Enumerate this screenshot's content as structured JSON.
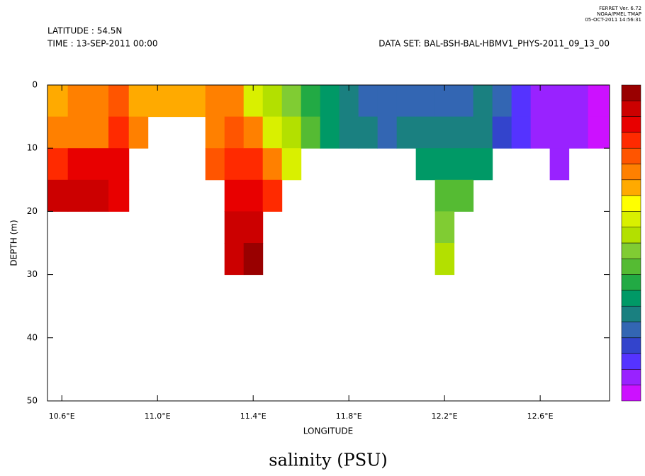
{
  "chart_data": {
    "type": "contour",
    "title": "salinity (PSU)",
    "header_left": [
      "LATITUDE : 54.5N",
      "TIME : 13-SEP-2011 00:00"
    ],
    "header_right": "DATA SET: BAL-BSH-BAL-HBMV1_PHYS-2011_09_13_00",
    "stamp": [
      "FERRET Ver. 6.72",
      "NOAA/PMEL TMAP",
      "05-OCT-2011 14:56:31"
    ],
    "x_label": "LONGITUDE",
    "y_label": "DEPTH (m)",
    "xlim": [
      10.54,
      12.89
    ],
    "ylim": [
      0,
      50
    ],
    "xticks": [
      {
        "value": 10.6,
        "label": "10.6°E"
      },
      {
        "value": 11.0,
        "label": "11.0°E"
      },
      {
        "value": 11.4,
        "label": "11.4°E"
      },
      {
        "value": 11.8,
        "label": "11.8°E"
      },
      {
        "value": 12.2,
        "label": "12.2°E"
      },
      {
        "value": 12.6,
        "label": "12.6°E"
      }
    ],
    "yticks": [
      0,
      10,
      20,
      30,
      40,
      50
    ],
    "y": [
      2.5,
      7.5,
      12.5,
      17.5,
      22.5,
      27.5
    ],
    "x": [
      10.58,
      10.67,
      10.75,
      10.84,
      10.92,
      11.0,
      11.08,
      11.16,
      11.24,
      11.32,
      11.4,
      11.48,
      11.56,
      11.64,
      11.72,
      11.8,
      11.88,
      11.96,
      12.04,
      12.12,
      12.2,
      12.28,
      12.36,
      12.44,
      12.52,
      12.6,
      12.68,
      12.76,
      12.84
    ],
    "values": [
      [
        13.75,
        14.25,
        15.25,
        16.25
      ],
      [
        14.25,
        14.25,
        15.75,
        16.25
      ],
      [
        14.25,
        14.25,
        15.75,
        16.25
      ],
      [
        14.75,
        15.25,
        15.75,
        15.75
      ],
      [
        13.75,
        14.25
      ],
      [
        13.75
      ],
      [
        13.75
      ],
      [
        13.75
      ],
      [
        14.25,
        14.25,
        14.75
      ],
      [
        14.25,
        14.75,
        15.25,
        15.75,
        16.25,
        16.25
      ],
      [
        12.75,
        14.25,
        15.25,
        15.75,
        16.25,
        16.75
      ],
      [
        12.25,
        12.75,
        14.25,
        15.25
      ],
      [
        11.75,
        12.25,
        12.75
      ],
      [
        10.75,
        11.25
      ],
      [
        10.25,
        10.25
      ],
      [
        9.75,
        9.75
      ],
      [
        9.25,
        9.75
      ],
      [
        9.25,
        9.25
      ],
      [
        9.25,
        9.75
      ],
      [
        9.25,
        9.75,
        10.25
      ],
      [
        9.25,
        9.75,
        10.25,
        11.25,
        11.75,
        12.25
      ],
      [
        9.25,
        9.75,
        10.25,
        11.25
      ],
      [
        9.75,
        9.75,
        10.25
      ],
      [
        9.25,
        8.75
      ],
      [
        8.25,
        8.25
      ],
      [
        7.75,
        7.75
      ],
      [
        7.75,
        7.75,
        7.75
      ],
      [
        7.75,
        7.75
      ],
      [
        7.25,
        7.25
      ]
    ],
    "levels": [
      7,
      7.5,
      8,
      8.5,
      9,
      9.5,
      10,
      10.5,
      11,
      11.5,
      12,
      12.5,
      13,
      13.5,
      14,
      14.5,
      15,
      15.5,
      16,
      16.5,
      17
    ],
    "colors": [
      "#cc11ff",
      "#9922ff",
      "#5533ff",
      "#3344cc",
      "#3366b3",
      "#1a8080",
      "#009966",
      "#22aa44",
      "#55bb33",
      "#80cc33",
      "#b3e000",
      "#d9f000",
      "#ffff00",
      "#ffaa00",
      "#ff8000",
      "#ff5500",
      "#ff2a00",
      "#e80000",
      "#cc0000",
      "#990000"
    ]
  }
}
